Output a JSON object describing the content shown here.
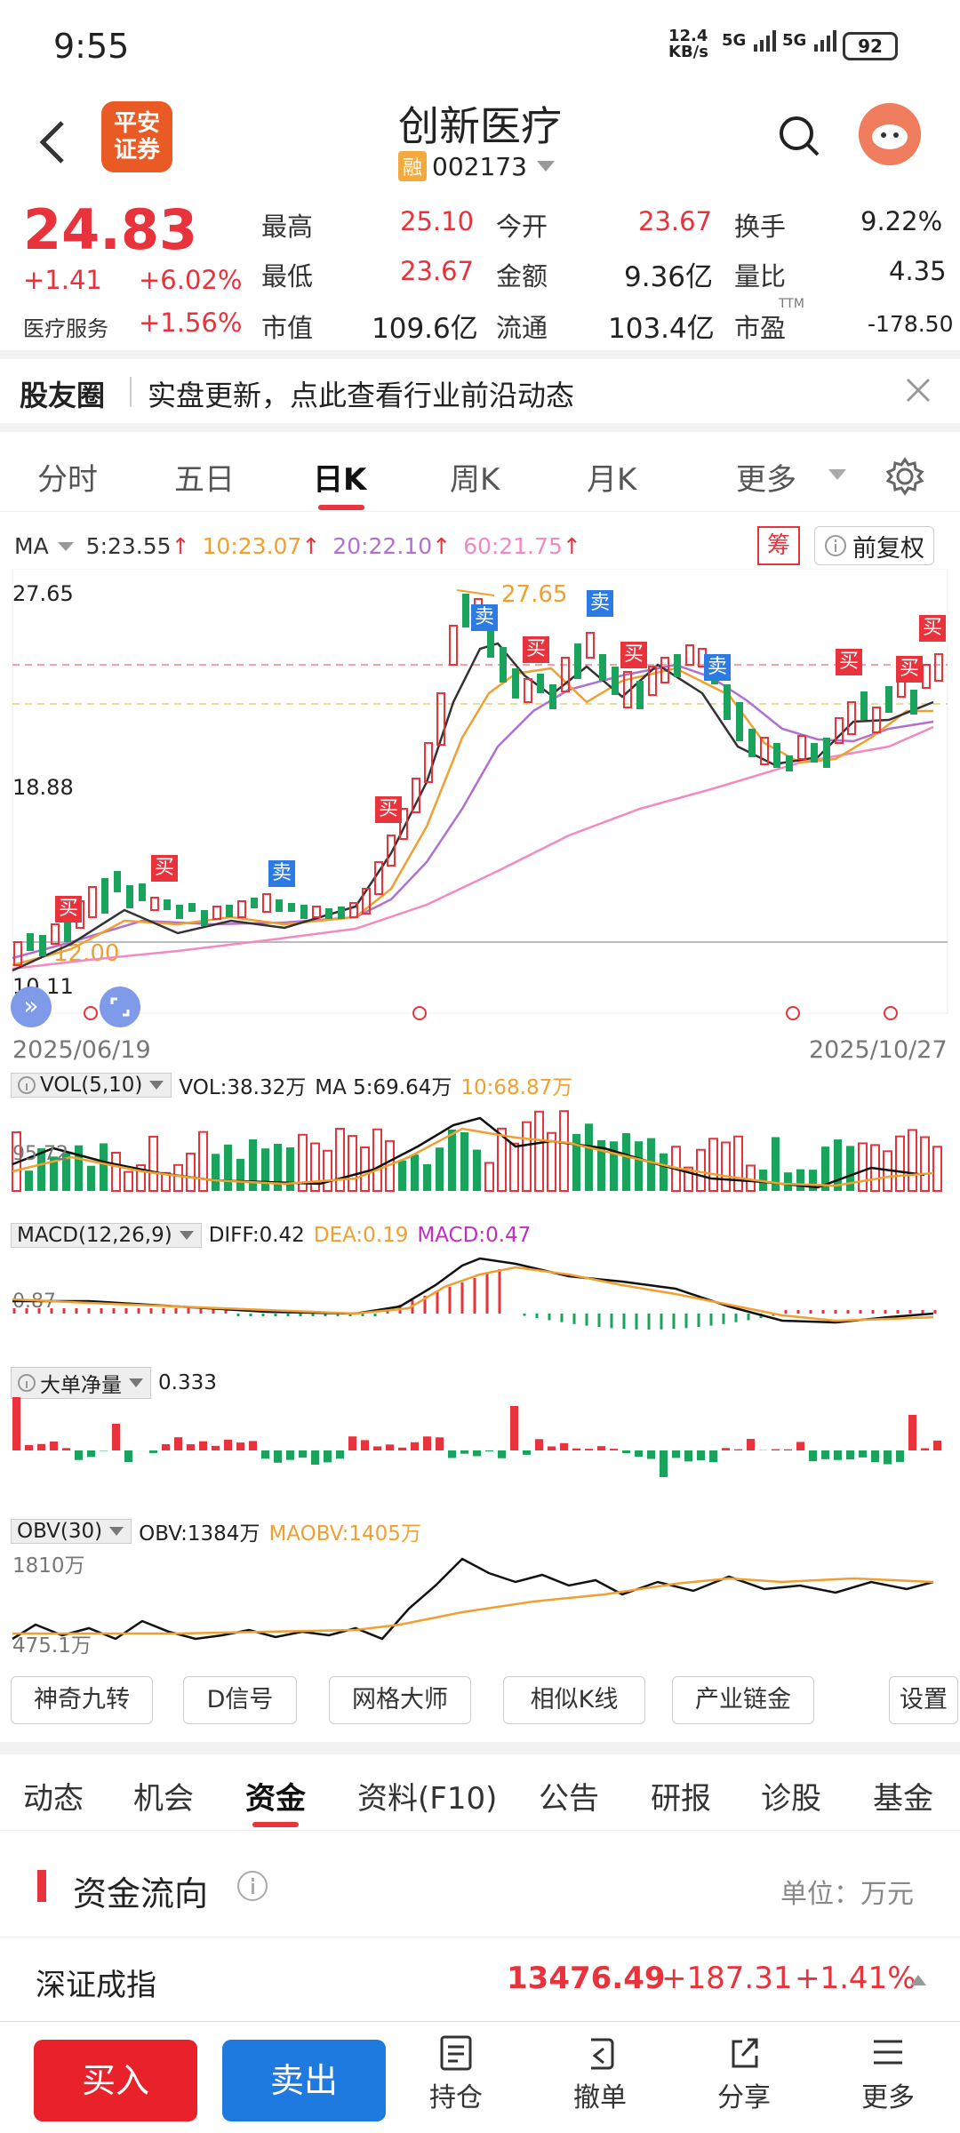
{
  "status": {
    "time": "9:55",
    "net_speed_top": "12.4",
    "net_speed_bot": "KB/s",
    "sig1": "5G",
    "sig2": "5G",
    "battery": "92"
  },
  "header": {
    "title": "创新医疗",
    "code": "002173",
    "badge": "融",
    "logo_line1": "平安",
    "logo_line2": "证券"
  },
  "quote": {
    "price": "24.83",
    "change": "+1.41",
    "change_pct": "+6.02%",
    "sector": "医疗服务",
    "sector_pct": "+1.56%",
    "high_label": "最高",
    "high": "25.10",
    "low_label": "最低",
    "low": "23.67",
    "mcap_label": "市值",
    "mcap": "109.6亿",
    "open_label": "今开",
    "open": "23.67",
    "amount_label": "金额",
    "amount": "9.36亿",
    "float_label": "流通",
    "float": "103.4亿",
    "turnover_label": "换手",
    "turnover": "9.22%",
    "volratio_label": "量比",
    "volratio": "4.35",
    "pe_label": "市盈",
    "pe_sup": "TTM",
    "pe": "-178.50"
  },
  "banner": {
    "label": "股友圈",
    "text": "实盘更新，点此查看行业前沿动态"
  },
  "kline_tabs": [
    "分时",
    "五日",
    "日K",
    "周K",
    "月K",
    "更多"
  ],
  "active_tab": "日K",
  "ma_bar": {
    "label": "MA",
    "ma5": "5:23.55",
    "ma10": "10:23.07",
    "ma20": "20:22.10",
    "ma60": "60:21.75",
    "chip": "筹",
    "adjust": "前复权"
  },
  "price_axis": {
    "top": "27.65",
    "mid": "18.88",
    "bottom": "10.11",
    "peak_label": "27.65",
    "low_label": "12.00"
  },
  "dates": {
    "start": "2025/06/19",
    "end": "2025/10/27"
  },
  "markers": {
    "buy": "买",
    "sell": "卖"
  },
  "vol": {
    "label": "VOL(5,10)",
    "value": "VOL:38.32万",
    "ma5": "MA 5:69.64万",
    "ma10": "10:68.87万",
    "axis": "95.72"
  },
  "macd": {
    "label": "MACD(12,26,9)",
    "diff": "DIFF:0.42",
    "dea": "DEA:0.19",
    "macd": "MACD:0.47",
    "axis": "0.87"
  },
  "bigorder": {
    "label": "大单净量",
    "value": "0.333"
  },
  "obv": {
    "label": "OBV(30)",
    "obv": "OBV:1384万",
    "maobv": "MAOBV:1405万",
    "axis_top": "1810万",
    "axis_bot": "475.1万"
  },
  "func_buttons": [
    "神奇九转",
    "D信号",
    "网格大师",
    "相似K线",
    "产业链金",
    "设置"
  ],
  "lower_tabs": [
    "动态",
    "机会",
    "资金",
    "资料(F10)",
    "公告",
    "研报",
    "诊股",
    "基金"
  ],
  "active_lower": "资金",
  "fund": {
    "title": "资金流向",
    "unit": "单位：万元"
  },
  "index": {
    "name": "深证成指",
    "value": "13476.49",
    "change": "+187.31",
    "pct": "+1.41%"
  },
  "bottom": {
    "buy": "买入",
    "sell": "卖出",
    "nav": [
      "持仓",
      "撤单",
      "分享",
      "更多"
    ]
  },
  "colors": {
    "up": "#e8323c",
    "down": "#1aa35c",
    "ma5": "#333333",
    "ma10": "#f0a030",
    "ma20": "#b070d0",
    "ma60": "#f28ac0"
  }
}
